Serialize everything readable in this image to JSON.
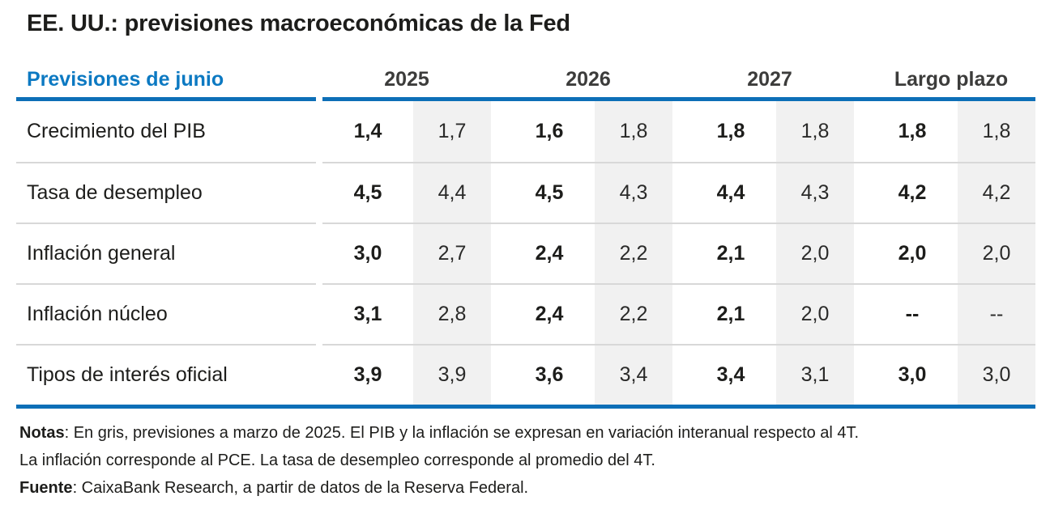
{
  "chart_data": {
    "type": "table",
    "title": "EE. UU.: previsiones macroeconómicas de la Fed",
    "corner_label": "Previsiones de junio",
    "column_groups": [
      "2025",
      "2026",
      "2027",
      "Largo plazo"
    ],
    "subcolumns_per_group": [
      "previsión de junio (negrita)",
      "previsión de marzo (fondo gris)"
    ],
    "rows": [
      {
        "label": "Crecimiento del PIB",
        "values": [
          "1,4",
          "1,7",
          "1,6",
          "1,8",
          "1,8",
          "1,8",
          "1,8",
          "1,8"
        ]
      },
      {
        "label": "Tasa de desempleo",
        "values": [
          "4,5",
          "4,4",
          "4,5",
          "4,3",
          "4,4",
          "4,3",
          "4,2",
          "4,2"
        ]
      },
      {
        "label": "Inflación general",
        "values": [
          "3,0",
          "2,7",
          "2,4",
          "2,2",
          "2,1",
          "2,0",
          "2,0",
          "2,0"
        ]
      },
      {
        "label": "Inflación núcleo",
        "values": [
          "3,1",
          "2,8",
          "2,4",
          "2,2",
          "2,1",
          "2,0",
          "--",
          "--"
        ]
      },
      {
        "label": "Tipos de interés oficial",
        "values": [
          "3,9",
          "3,9",
          "3,6",
          "3,4",
          "3,4",
          "3,1",
          "3,0",
          "3,0"
        ]
      }
    ],
    "notes": "Notas: En gris, previsiones a marzo de 2025. El PIB y la inflación se expresan en variación interanual respecto al 4T. La inflación corresponde al PCE. La tasa de desempleo corresponde al promedio del 4T.",
    "source": "Fuente: CaixaBank Research, a partir de datos de la Reserva Federal.",
    "legend_position": "none",
    "grid": "horizontal separators between rows"
  },
  "footnotes": {
    "notes_prefix": "Notas",
    "notes_line1": ": En gris, previsiones a marzo de 2025. El PIB y la inflación se expresan en variación interanual respecto al 4T.",
    "notes_line2": "La inflación corresponde al PCE. La tasa de desempleo corresponde al promedio del 4T.",
    "source_prefix": "Fuente",
    "source_text": ": CaixaBank Research, a partir de datos de la Reserva Federal."
  },
  "colors": {
    "accent_blue_rule": "#0d6fb7",
    "corner_label_blue": "#0c79c2",
    "march_band_gray": "#f1f1f1",
    "row_separator_gray": "#d8d8d8",
    "text_dark": "#1d1d1b",
    "year_header_gray": "#3c3c3b",
    "background": "#ffffff"
  }
}
